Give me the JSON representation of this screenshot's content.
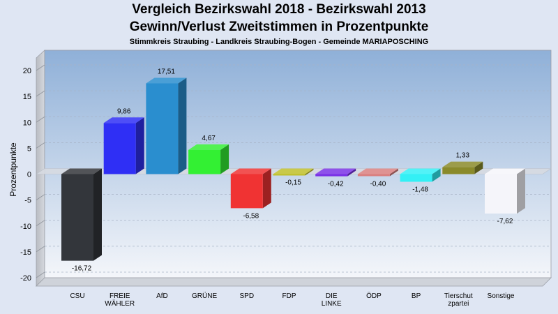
{
  "title": "Vergleich Bezirkswahl 2018 - Bezirkswahl 2013",
  "subtitle": "Gewinn/Verlust Zweitstimmen in Prozentpunkte",
  "subsubtitle": "Stimmkreis Straubing - Landkreis Straubing-Bogen - Gemeinde MARIAPOSCHING",
  "chart_data": {
    "type": "bar",
    "title": "Vergleich Bezirkswahl 2018 - Bezirkswahl 2013",
    "ylabel": "Prozentpunkte",
    "xlabel": "",
    "ylim": [
      -20,
      20
    ],
    "yticks": [
      20,
      15,
      10,
      5,
      0,
      -5,
      -10,
      -15,
      -20
    ],
    "categories": [
      "CSU",
      "FREIE WÄHLER",
      "AfD",
      "GRÜNE",
      "SPD",
      "FDP",
      "DIE LINKE",
      "ÖDP",
      "BP",
      "Tierschutzpartei",
      "Sonstige"
    ],
    "category_labels": [
      [
        "CSU"
      ],
      [
        "FREIE",
        "WÄHLER"
      ],
      [
        "AfD"
      ],
      [
        "GRÜNE"
      ],
      [
        "SPD"
      ],
      [
        "FDP"
      ],
      [
        "DIE",
        "LINKE"
      ],
      [
        "ÖDP"
      ],
      [
        "BP"
      ],
      [
        "Tierschut",
        "zpartei"
      ],
      [
        "Sonstige"
      ]
    ],
    "values": [
      -16.72,
      9.86,
      17.51,
      4.67,
      -6.58,
      -0.15,
      -0.42,
      -0.4,
      -1.48,
      1.33,
      -7.62
    ],
    "value_labels": [
      "-16,72",
      "9,86",
      "17,51",
      "4,67",
      "-6,58",
      "-0,15",
      "-0,42",
      "-0,40",
      "-1,48",
      "1,33",
      "-7,62"
    ],
    "colors": [
      "#33363b",
      "#2f2ff5",
      "#2a8ecf",
      "#33f033",
      "#f03333",
      "#bfbf2a",
      "#7a33e6",
      "#d98080",
      "#33f0f5",
      "#8a8a2a",
      "#f5f5fa"
    ],
    "grid": true,
    "legend": "none"
  }
}
